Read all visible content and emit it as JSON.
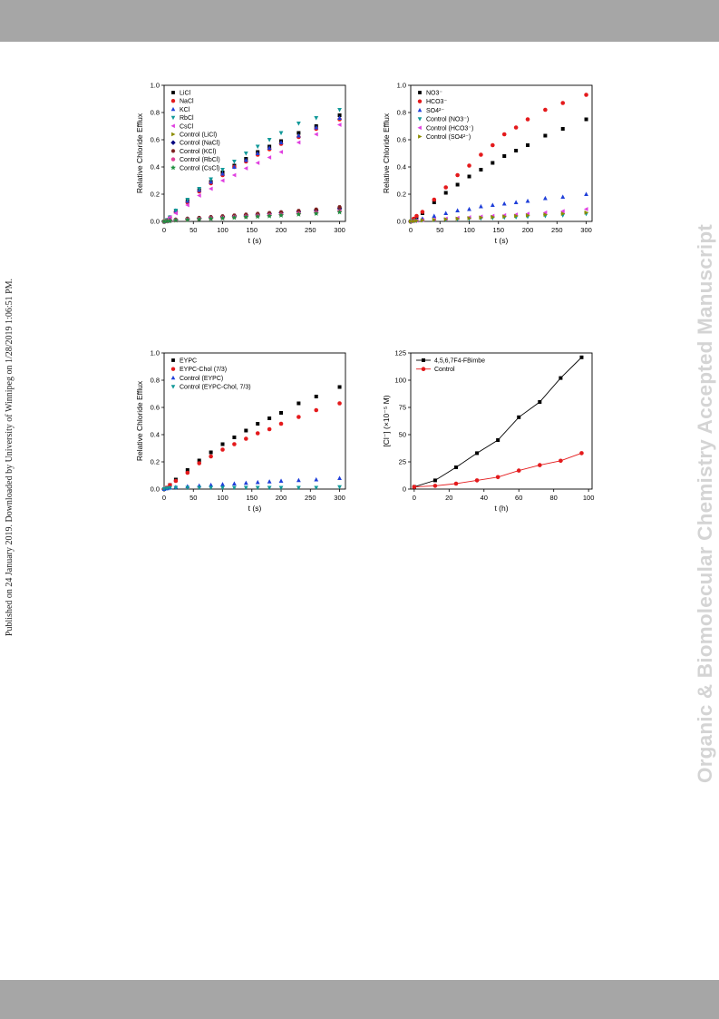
{
  "page": {
    "side_text_left": "Published on 24 January 2019. Downloaded by University of Winnipeg on 1/28/2019 1:06:51 PM.",
    "side_text_right": "Organic & Biomolecular Chemistry Accepted Manuscript",
    "colors": {
      "band": "#a6a6a6",
      "watermark": "#d4d4d4"
    }
  },
  "chart_data": [
    {
      "type": "scatter",
      "xlabel": "t (s)",
      "ylabel": "Relative Chloride Efflux",
      "xlim": [
        0,
        310
      ],
      "ylim": [
        0,
        1.0
      ],
      "xticks": [
        "0",
        "50",
        "100",
        "150",
        "200",
        "250",
        "300"
      ],
      "yticks": [
        "0.0",
        "0.2",
        "0.4",
        "0.6",
        "0.8",
        "1.0"
      ],
      "legend_position": "top-left",
      "x": [
        0,
        5,
        10,
        20,
        40,
        60,
        80,
        100,
        120,
        140,
        160,
        180,
        200,
        230,
        260,
        300
      ],
      "series": [
        {
          "name": "LiCl",
          "color": "#000000",
          "marker": "square",
          "values": [
            0,
            0.01,
            0.03,
            0.07,
            0.15,
            0.23,
            0.29,
            0.36,
            0.41,
            0.46,
            0.51,
            0.55,
            0.59,
            0.65,
            0.7,
            0.78
          ]
        },
        {
          "name": "NaCl",
          "color": "#e41a1c",
          "marker": "circle",
          "values": [
            0,
            0.01,
            0.03,
            0.07,
            0.14,
            0.22,
            0.28,
            0.34,
            0.4,
            0.44,
            0.49,
            0.53,
            0.57,
            0.62,
            0.68,
            0.75
          ]
        },
        {
          "name": "KCl",
          "color": "#1f3fd9",
          "marker": "triangle-up",
          "values": [
            0,
            0.01,
            0.03,
            0.08,
            0.15,
            0.23,
            0.29,
            0.35,
            0.4,
            0.45,
            0.5,
            0.54,
            0.58,
            0.63,
            0.69,
            0.76
          ]
        },
        {
          "name": "RbCl",
          "color": "#119999",
          "marker": "triangle-down",
          "values": [
            0,
            0.01,
            0.03,
            0.08,
            0.16,
            0.24,
            0.31,
            0.38,
            0.44,
            0.5,
            0.55,
            0.6,
            0.65,
            0.72,
            0.76,
            0.82
          ]
        },
        {
          "name": "CsCl",
          "color": "#e040e0",
          "marker": "triangle-left",
          "values": [
            0,
            0.01,
            0.03,
            0.06,
            0.12,
            0.19,
            0.24,
            0.3,
            0.34,
            0.39,
            0.43,
            0.47,
            0.51,
            0.58,
            0.64,
            0.71
          ]
        },
        {
          "name": "Control (LiCl)",
          "color": "#8b8b00",
          "marker": "triangle-right",
          "values": [
            0,
            0.002,
            0.005,
            0.01,
            0.015,
            0.02,
            0.025,
            0.03,
            0.035,
            0.04,
            0.045,
            0.05,
            0.055,
            0.065,
            0.075,
            0.09
          ]
        },
        {
          "name": "Control (NaCl)",
          "color": "#000080",
          "marker": "diamond",
          "values": [
            0,
            0.003,
            0.006,
            0.012,
            0.018,
            0.024,
            0.03,
            0.035,
            0.04,
            0.046,
            0.052,
            0.058,
            0.064,
            0.072,
            0.08,
            0.095
          ]
        },
        {
          "name": "Control (KCl)",
          "color": "#7a1f1f",
          "marker": "hexagon",
          "values": [
            0,
            0.003,
            0.007,
            0.013,
            0.02,
            0.026,
            0.032,
            0.038,
            0.044,
            0.05,
            0.056,
            0.062,
            0.068,
            0.078,
            0.088,
            0.105
          ]
        },
        {
          "name": "Control (RbCl)",
          "color": "#e0409a",
          "marker": "circle",
          "values": [
            0,
            0.002,
            0.005,
            0.009,
            0.014,
            0.018,
            0.023,
            0.027,
            0.032,
            0.036,
            0.041,
            0.046,
            0.05,
            0.058,
            0.065,
            0.075
          ]
        },
        {
          "name": "Control (CsCl)",
          "color": "#1f8f3f",
          "marker": "star",
          "values": [
            0,
            0.002,
            0.004,
            0.008,
            0.012,
            0.016,
            0.02,
            0.024,
            0.028,
            0.032,
            0.036,
            0.04,
            0.045,
            0.052,
            0.058,
            0.068
          ]
        }
      ]
    },
    {
      "type": "scatter",
      "xlabel": "t (s)",
      "ylabel": "Relative Chloride Efflux",
      "xlim": [
        0,
        310
      ],
      "ylim": [
        0,
        1.0
      ],
      "xticks": [
        "0",
        "50",
        "100",
        "150",
        "200",
        "250",
        "300"
      ],
      "yticks": [
        "0.0",
        "0.2",
        "0.4",
        "0.6",
        "0.8",
        "1.0"
      ],
      "legend_position": "top-left",
      "x": [
        0,
        5,
        10,
        20,
        40,
        60,
        80,
        100,
        120,
        140,
        160,
        180,
        200,
        230,
        260,
        300
      ],
      "series": [
        {
          "name": "NO3⁻",
          "color": "#000000",
          "marker": "square",
          "values": [
            0,
            0.01,
            0.02,
            0.06,
            0.14,
            0.21,
            0.27,
            0.33,
            0.38,
            0.43,
            0.48,
            0.52,
            0.56,
            0.63,
            0.68,
            0.75
          ]
        },
        {
          "name": "HCO3⁻",
          "color": "#e41a1c",
          "marker": "circle",
          "values": [
            0,
            0.02,
            0.04,
            0.07,
            0.16,
            0.25,
            0.34,
            0.41,
            0.49,
            0.56,
            0.64,
            0.69,
            0.75,
            0.82,
            0.87,
            0.93
          ]
        },
        {
          "name": "SO4²⁻",
          "color": "#1f3fd9",
          "marker": "triangle-up",
          "values": [
            0,
            0.005,
            0.01,
            0.02,
            0.04,
            0.06,
            0.08,
            0.09,
            0.11,
            0.12,
            0.13,
            0.14,
            0.15,
            0.17,
            0.18,
            0.2
          ]
        },
        {
          "name": "Control (NO3⁻)",
          "color": "#119999",
          "marker": "triangle-down",
          "values": [
            0,
            0.002,
            0.004,
            0.007,
            0.01,
            0.013,
            0.016,
            0.019,
            0.022,
            0.025,
            0.028,
            0.031,
            0.035,
            0.04,
            0.045,
            0.055
          ]
        },
        {
          "name": "Control (HCO3⁻)",
          "color": "#e040e0",
          "marker": "triangle-left",
          "values": [
            0,
            0.003,
            0.006,
            0.01,
            0.015,
            0.02,
            0.025,
            0.03,
            0.035,
            0.04,
            0.045,
            0.05,
            0.056,
            0.065,
            0.075,
            0.09
          ]
        },
        {
          "name": "Control (SO4²⁻)",
          "color": "#8b8b00",
          "marker": "triangle-right",
          "values": [
            0,
            0.002,
            0.005,
            0.008,
            0.012,
            0.016,
            0.02,
            0.024,
            0.028,
            0.032,
            0.036,
            0.04,
            0.044,
            0.05,
            0.057,
            0.065
          ]
        }
      ]
    },
    {
      "type": "scatter",
      "xlabel": "t (s)",
      "ylabel": "Relative Chloride Efflux",
      "xlim": [
        0,
        310
      ],
      "ylim": [
        0,
        1.0
      ],
      "xticks": [
        "0",
        "50",
        "100",
        "150",
        "200",
        "250",
        "300"
      ],
      "yticks": [
        "0.0",
        "0.2",
        "0.4",
        "0.6",
        "0.8",
        "1.0"
      ],
      "legend_position": "top-left",
      "x": [
        0,
        5,
        10,
        20,
        40,
        60,
        80,
        100,
        120,
        140,
        160,
        180,
        200,
        230,
        260,
        300
      ],
      "series": [
        {
          "name": "EYPC",
          "color": "#000000",
          "marker": "square",
          "values": [
            0,
            0.01,
            0.03,
            0.07,
            0.14,
            0.21,
            0.27,
            0.33,
            0.38,
            0.43,
            0.48,
            0.52,
            0.56,
            0.63,
            0.68,
            0.75
          ]
        },
        {
          "name": "EYPC-Chol (7/3)",
          "color": "#e41a1c",
          "marker": "circle",
          "values": [
            0,
            0.01,
            0.03,
            0.06,
            0.12,
            0.19,
            0.24,
            0.29,
            0.33,
            0.37,
            0.41,
            0.44,
            0.48,
            0.53,
            0.58,
            0.63
          ]
        },
        {
          "name": "Control (EYPC)",
          "color": "#1f3fd9",
          "marker": "triangle-up",
          "values": [
            0,
            0.005,
            0.01,
            0.015,
            0.02,
            0.025,
            0.03,
            0.035,
            0.04,
            0.045,
            0.05,
            0.055,
            0.06,
            0.065,
            0.07,
            0.08
          ]
        },
        {
          "name": "Control (EYPC-Chol, 7/3)",
          "color": "#119999",
          "marker": "triangle-down",
          "values": [
            0,
            0.005,
            0.008,
            0.01,
            0.01,
            0.01,
            0.01,
            0.01,
            0.01,
            0.01,
            0.01,
            0.01,
            0.01,
            0.01,
            0.01,
            0.015
          ]
        }
      ]
    },
    {
      "type": "line",
      "xlabel": "t (h)",
      "ylabel": "[Cl⁻] (×10⁻⁵ M)",
      "xlim": [
        -2,
        102
      ],
      "ylim": [
        0,
        125
      ],
      "xticks": [
        "0",
        "20",
        "40",
        "60",
        "80",
        "100"
      ],
      "yticks": [
        "0",
        "25",
        "50",
        "75",
        "100",
        "125"
      ],
      "legend_position": "top-left",
      "series": [
        {
          "name": "4,5,6,7F4-FBimbe",
          "color": "#000000",
          "marker": "square",
          "x": [
            0,
            12,
            24,
            36,
            48,
            60,
            72,
            84,
            96
          ],
          "values": [
            2,
            8,
            20,
            33,
            45,
            66,
            80,
            102,
            121
          ]
        },
        {
          "name": "Control",
          "color": "#e41a1c",
          "marker": "circle",
          "x": [
            0,
            12,
            24,
            36,
            48,
            60,
            72,
            84,
            96
          ],
          "values": [
            2,
            3,
            5,
            8,
            11,
            17,
            22,
            26,
            33
          ]
        }
      ]
    }
  ]
}
